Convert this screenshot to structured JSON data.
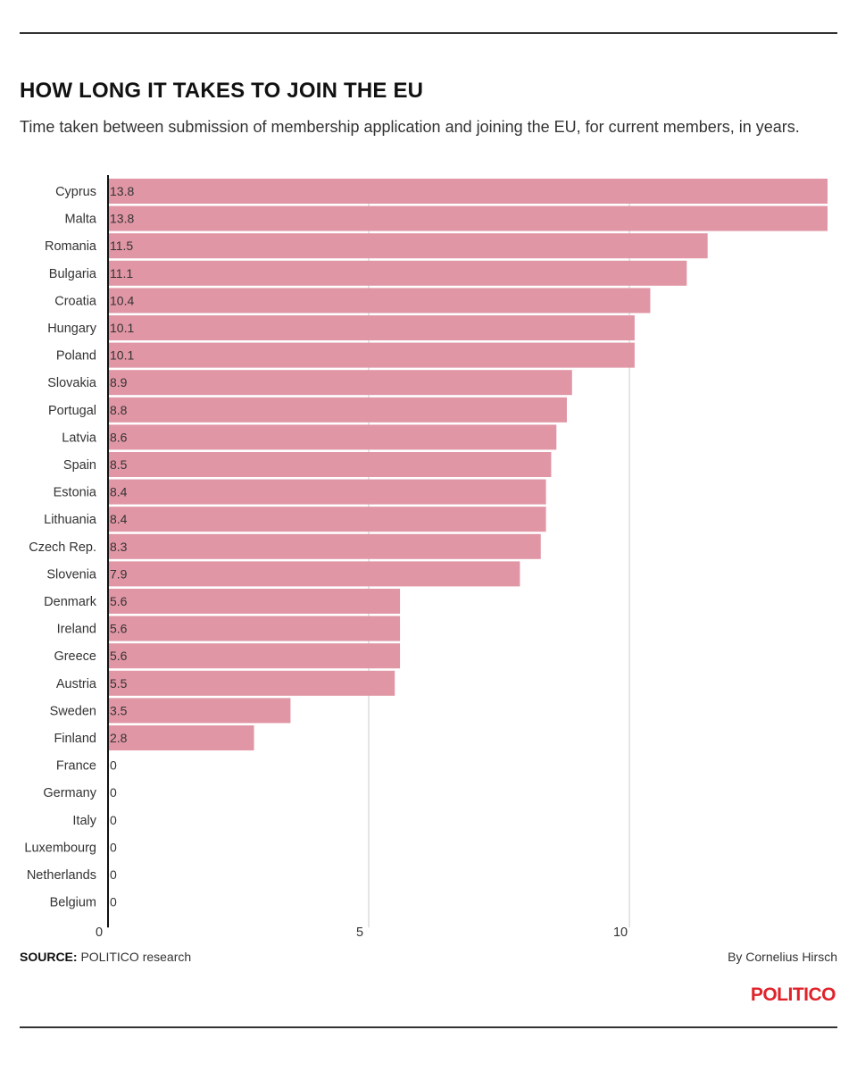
{
  "header": {
    "title": "HOW LONG IT TAKES TO JOIN THE EU",
    "subtitle": "Time taken between submission of membership application and joining the EU, for current members, in years."
  },
  "footer": {
    "source_label": "SOURCE:",
    "source_text": "POLITICO research",
    "byline": "By Cornelius Hirsch",
    "logo_text": "POLITICO"
  },
  "colors": {
    "bar": "#e096a5",
    "axis": "#111111",
    "grid": "#cccccc",
    "brand": "#e0232a"
  },
  "chart_data": {
    "type": "bar",
    "orientation": "horizontal",
    "title": "HOW LONG IT TAKES TO JOIN THE EU",
    "subtitle": "Time taken between submission of membership application and joining the EU, for current members, in years.",
    "categories": [
      "Cyprus",
      "Malta",
      "Romania",
      "Bulgaria",
      "Croatia",
      "Hungary",
      "Poland",
      "Slovakia",
      "Portugal",
      "Latvia",
      "Spain",
      "Estonia",
      "Lithuania",
      "Czech Rep.",
      "Slovenia",
      "Denmark",
      "Ireland",
      "Greece",
      "Austria",
      "Sweden",
      "Finland",
      "France",
      "Germany",
      "Italy",
      "Luxembourg",
      "Netherlands",
      "Belgium"
    ],
    "values": [
      13.8,
      13.8,
      11.5,
      11.1,
      10.4,
      10.1,
      10.1,
      8.9,
      8.8,
      8.6,
      8.5,
      8.4,
      8.4,
      8.3,
      7.9,
      5.6,
      5.6,
      5.6,
      5.5,
      3.5,
      2.8,
      0,
      0,
      0,
      0,
      0,
      0
    ],
    "value_labels": [
      "13.8",
      "13.8",
      "11.5",
      "11.1",
      "10.4",
      "10.1",
      "10.1",
      "8.9",
      "8.8",
      "8.6",
      "8.5",
      "8.4",
      "8.4",
      "8.3",
      "7.9",
      "5.6",
      "5.6",
      "5.6",
      "5.5",
      "3.5",
      "2.8",
      "0",
      "0",
      "0",
      "0",
      "0",
      "0"
    ],
    "xticks": [
      0,
      5,
      10
    ],
    "xtick_labels": [
      "0",
      "5",
      "10"
    ],
    "xlim": [
      0,
      13.8
    ],
    "xlabel": "",
    "ylabel": "",
    "grid": "vertical",
    "legend": "none"
  }
}
